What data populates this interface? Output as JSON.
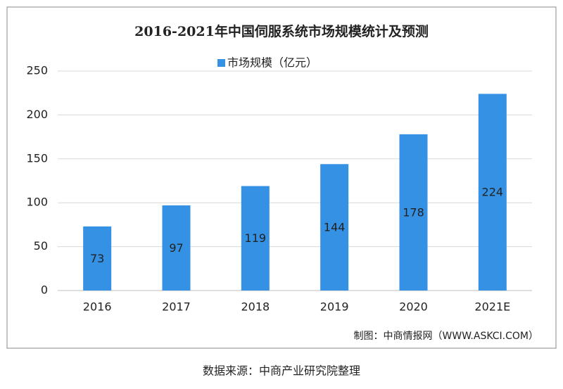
{
  "chart_data": {
    "type": "bar",
    "title": "2016-2021年中国伺服系统市场规模统计及预测",
    "categories": [
      "2016",
      "2017",
      "2018",
      "2019",
      "2020",
      "2021E"
    ],
    "series": [
      {
        "name": "市场规模（亿元）",
        "color": "#3591e3",
        "values": [
          73,
          97,
          119,
          144,
          178,
          224
        ]
      }
    ],
    "ylim": [
      0,
      250
    ],
    "yticks": [
      0,
      50,
      100,
      150,
      200,
      250
    ],
    "grid": true,
    "legend": "top",
    "credit": "制图：中商情报网（WWW.ASKCI.COM）",
    "source": "数据来源：中商产业研究院整理"
  }
}
